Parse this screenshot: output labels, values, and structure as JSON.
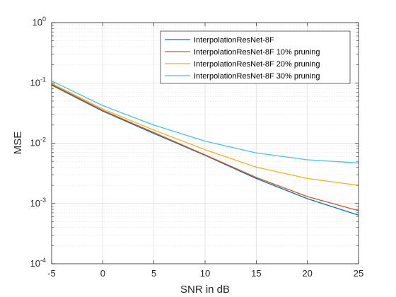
{
  "chart_data": {
    "type": "line",
    "title": "",
    "xlabel": "SNR in dB",
    "ylabel": "MSE",
    "x": [
      -5,
      0,
      5,
      10,
      15,
      20,
      25
    ],
    "xlim": [
      -5,
      25
    ],
    "ylim": [
      0.0001,
      1
    ],
    "yscale": "log",
    "grid": true,
    "minor_grid": true,
    "legend_position": "top-right",
    "x_ticks": [
      -5,
      0,
      5,
      10,
      15,
      20,
      25
    ],
    "x_tick_labels": [
      "-5",
      "0",
      "5",
      "10",
      "15",
      "20",
      "25"
    ],
    "y_ticks": [
      0.0001,
      0.001,
      0.01,
      0.1,
      1
    ],
    "y_tick_labels": [
      {
        "base": "10",
        "exp": "-4"
      },
      {
        "base": "10",
        "exp": "-3"
      },
      {
        "base": "10",
        "exp": "-2"
      },
      {
        "base": "10",
        "exp": "-1"
      },
      {
        "base": "10",
        "exp": "0"
      }
    ],
    "series": [
      {
        "name": "InterpolationResNet-8F",
        "color": "#0072BD",
        "values": [
          0.092,
          0.034,
          0.0145,
          0.0063,
          0.0026,
          0.0012,
          0.00064
        ]
      },
      {
        "name": "InterpolationResNet-8F 10% pruning",
        "color": "#D95319",
        "values": [
          0.095,
          0.035,
          0.015,
          0.0064,
          0.0027,
          0.0013,
          0.00076
        ]
      },
      {
        "name": "InterpolationResNet-8F 20% pruning",
        "color": "#EDB120",
        "values": [
          0.098,
          0.037,
          0.0165,
          0.0078,
          0.004,
          0.0026,
          0.002
        ]
      },
      {
        "name": "InterpolationResNet-8F 30% pruning",
        "color": "#4DBEEE",
        "values": [
          0.108,
          0.042,
          0.02,
          0.0108,
          0.0069,
          0.0053,
          0.0047
        ]
      }
    ]
  }
}
